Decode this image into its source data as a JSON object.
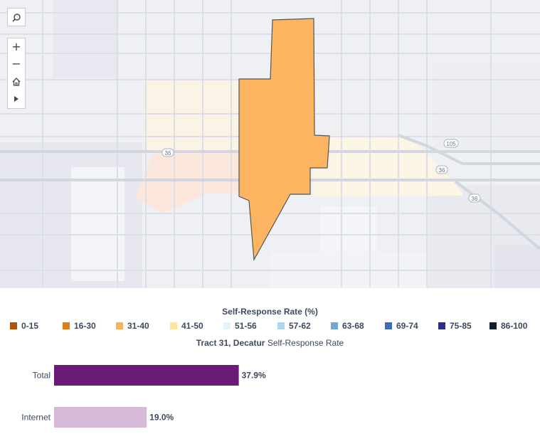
{
  "map": {
    "roads": {
      "route_shields": [
        "36",
        "36",
        "36",
        "105"
      ]
    },
    "colors": {
      "background": "#eef0f4",
      "selected_tract": "#fdb562",
      "context_tract_light": "#fdf1dc",
      "context_tract_orange": "#fbe3d0"
    },
    "controls": [
      {
        "name": "search",
        "icon": "search-icon"
      },
      {
        "name": "zoom-in",
        "icon": "plus-icon"
      },
      {
        "name": "zoom-out",
        "icon": "minus-icon"
      },
      {
        "name": "home",
        "icon": "home-icon"
      },
      {
        "name": "play",
        "icon": "play-icon"
      }
    ]
  },
  "legend": {
    "title": "Self-Response Rate (%)",
    "items": [
      {
        "label": "0-15",
        "color": "#b45305"
      },
      {
        "label": "16-30",
        "color": "#e07f18"
      },
      {
        "label": "31-40",
        "color": "#fbb25a"
      },
      {
        "label": "41-50",
        "color": "#fde59b"
      },
      {
        "label": "51-56",
        "color": "#e6f4fb"
      },
      {
        "label": "57-62",
        "color": "#aed6f0"
      },
      {
        "label": "63-68",
        "color": "#6fa9d7"
      },
      {
        "label": "69-74",
        "color": "#3e6cbc"
      },
      {
        "label": "75-85",
        "color": "#2a2d8e"
      },
      {
        "label": "86-100",
        "color": "#0f1e35"
      }
    ]
  },
  "chart_title": {
    "bold": "Tract 31, Decatur",
    "rest": " Self-Response Rate"
  },
  "chart_data": {
    "type": "bar",
    "orientation": "horizontal",
    "categories": [
      "Total",
      "Internet"
    ],
    "values": [
      37.9,
      19.0
    ],
    "value_labels": [
      "37.9%",
      "19.0%"
    ],
    "colors": [
      "#6a1b78",
      "#d5b9d6"
    ],
    "xlim": [
      0,
      100
    ]
  }
}
